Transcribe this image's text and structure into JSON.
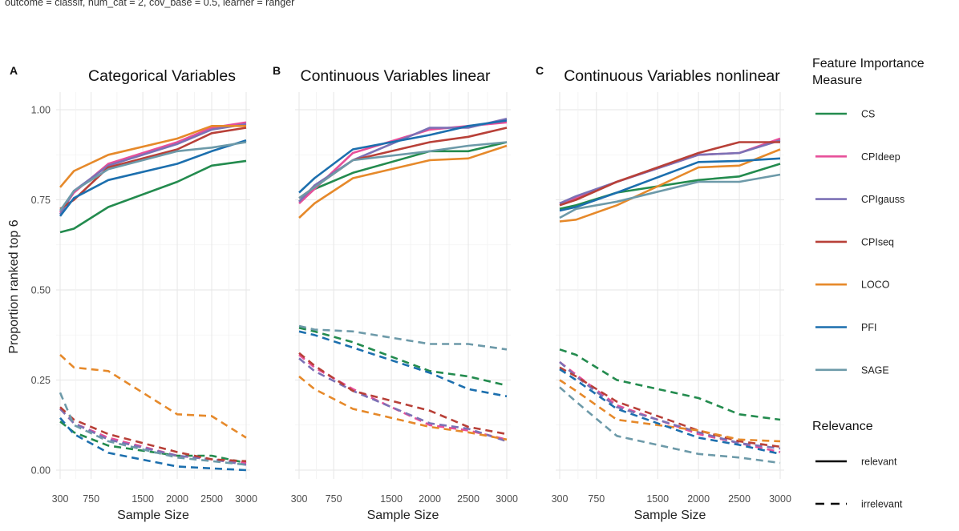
{
  "caption": "outcome = classif, num_cat = 2, cov_base = 0.5, learner = ranger",
  "legend": {
    "title_line1": "Feature Importance",
    "title_line2": "Measure",
    "relevance_title": "Relevance",
    "relevance_entries": [
      "relevant",
      "irrelevant"
    ]
  },
  "colors": {
    "CS": "#238b4e",
    "CPIdeep": "#e7509a",
    "CPIgauss": "#7c71b5",
    "CPIseq": "#b84038",
    "LOCO": "#e6892a",
    "PFI": "#1c6fae",
    "SAGE": "#6d9aa9"
  },
  "chart_data": [
    {
      "type": "line",
      "panel": "A",
      "title": "Categorical Variables",
      "xlabel": "Sample Size",
      "ylabel": "Proportion ranked top 6",
      "x": [
        300,
        500,
        1000,
        2000,
        2500,
        3000
      ],
      "xticks": [
        300,
        750,
        1500,
        2000,
        2500,
        3000
      ],
      "yticks": [
        "0.00",
        "0.25",
        "0.50",
        "0.75",
        "1.00"
      ],
      "xlim": [
        300,
        3000
      ],
      "ylim": [
        0,
        1
      ],
      "series": [
        {
          "name": "CS",
          "relevance": "relevant",
          "values": [
            0.66,
            0.67,
            0.73,
            0.8,
            0.845,
            0.858
          ]
        },
        {
          "name": "CPIdeep",
          "relevance": "relevant",
          "values": [
            0.715,
            0.77,
            0.85,
            0.91,
            0.95,
            0.965
          ]
        },
        {
          "name": "CPIgauss",
          "relevance": "relevant",
          "values": [
            0.71,
            0.775,
            0.845,
            0.905,
            0.945,
            0.96
          ]
        },
        {
          "name": "CPIseq",
          "relevance": "relevant",
          "values": [
            0.725,
            0.75,
            0.84,
            0.89,
            0.935,
            0.95
          ]
        },
        {
          "name": "LOCO",
          "relevance": "relevant",
          "values": [
            0.785,
            0.83,
            0.875,
            0.92,
            0.955,
            0.955
          ]
        },
        {
          "name": "PFI",
          "relevance": "relevant",
          "values": [
            0.705,
            0.755,
            0.805,
            0.85,
            0.885,
            0.915
          ]
        },
        {
          "name": "SAGE",
          "relevance": "relevant",
          "values": [
            0.72,
            0.775,
            0.835,
            0.885,
            0.895,
            0.91
          ]
        },
        {
          "name": "CS",
          "relevance": "irrelevant",
          "values": [
            0.135,
            0.105,
            0.068,
            0.04,
            0.04,
            0.02
          ]
        },
        {
          "name": "CPIdeep",
          "relevance": "irrelevant",
          "values": [
            0.17,
            0.13,
            0.09,
            0.04,
            0.03,
            0.02
          ]
        },
        {
          "name": "CPIgauss",
          "relevance": "irrelevant",
          "values": [
            0.17,
            0.13,
            0.085,
            0.04,
            0.03,
            0.015
          ]
        },
        {
          "name": "CPIseq",
          "relevance": "irrelevant",
          "values": [
            0.175,
            0.14,
            0.1,
            0.05,
            0.03,
            0.025
          ]
        },
        {
          "name": "LOCO",
          "relevance": "irrelevant",
          "values": [
            0.32,
            0.285,
            0.275,
            0.155,
            0.15,
            0.09
          ]
        },
        {
          "name": "PFI",
          "relevance": "irrelevant",
          "values": [
            0.145,
            0.1,
            0.048,
            0.01,
            0.005,
            0.0
          ]
        },
        {
          "name": "SAGE",
          "relevance": "irrelevant",
          "values": [
            0.215,
            0.125,
            0.08,
            0.035,
            0.025,
            0.015
          ]
        }
      ]
    },
    {
      "type": "line",
      "panel": "B",
      "title": "Continuous Variables linear",
      "xlabel": "Sample Size",
      "x": [
        300,
        500,
        1000,
        2000,
        2500,
        3000
      ],
      "xticks": [
        300,
        750,
        1500,
        2000,
        2500,
        3000
      ],
      "xlim": [
        300,
        3000
      ],
      "ylim": [
        0,
        1
      ],
      "series": [
        {
          "name": "CS",
          "relevance": "relevant",
          "values": [
            0.745,
            0.78,
            0.825,
            0.885,
            0.885,
            0.91
          ]
        },
        {
          "name": "CPIdeep",
          "relevance": "relevant",
          "values": [
            0.74,
            0.78,
            0.88,
            0.945,
            0.955,
            0.965
          ]
        },
        {
          "name": "CPIgauss",
          "relevance": "relevant",
          "values": [
            0.745,
            0.79,
            0.86,
            0.95,
            0.95,
            0.975
          ]
        },
        {
          "name": "CPIseq",
          "relevance": "relevant",
          "values": [
            0.755,
            0.785,
            0.86,
            0.91,
            0.925,
            0.95
          ]
        },
        {
          "name": "LOCO",
          "relevance": "relevant",
          "values": [
            0.7,
            0.74,
            0.81,
            0.86,
            0.865,
            0.9
          ]
        },
        {
          "name": "PFI",
          "relevance": "relevant",
          "values": [
            0.77,
            0.81,
            0.89,
            0.93,
            0.955,
            0.97
          ]
        },
        {
          "name": "SAGE",
          "relevance": "relevant",
          "values": [
            0.755,
            0.785,
            0.86,
            0.885,
            0.9,
            0.91
          ]
        },
        {
          "name": "CS",
          "relevance": "irrelevant",
          "values": [
            0.395,
            0.385,
            0.355,
            0.275,
            0.26,
            0.235
          ]
        },
        {
          "name": "CPIdeep",
          "relevance": "irrelevant",
          "values": [
            0.32,
            0.285,
            0.225,
            0.125,
            0.11,
            0.085
          ]
        },
        {
          "name": "CPIgauss",
          "relevance": "irrelevant",
          "values": [
            0.31,
            0.275,
            0.22,
            0.13,
            0.115,
            0.08
          ]
        },
        {
          "name": "CPIseq",
          "relevance": "irrelevant",
          "values": [
            0.325,
            0.29,
            0.22,
            0.165,
            0.12,
            0.1
          ]
        },
        {
          "name": "LOCO",
          "relevance": "irrelevant",
          "values": [
            0.26,
            0.225,
            0.17,
            0.12,
            0.105,
            0.085
          ]
        },
        {
          "name": "PFI",
          "relevance": "irrelevant",
          "values": [
            0.385,
            0.375,
            0.34,
            0.27,
            0.225,
            0.205
          ]
        },
        {
          "name": "SAGE",
          "relevance": "irrelevant",
          "values": [
            0.4,
            0.39,
            0.385,
            0.35,
            0.35,
            0.335
          ]
        }
      ]
    },
    {
      "type": "line",
      "panel": "C",
      "title": "Continuous Variables nonlinear",
      "xlabel": "Sample Size",
      "x": [
        300,
        500,
        1000,
        2000,
        2500,
        3000
      ],
      "xticks": [
        300,
        750,
        1500,
        2000,
        2500,
        3000
      ],
      "xlim": [
        300,
        3000
      ],
      "ylim": [
        0,
        1
      ],
      "series": [
        {
          "name": "CS",
          "relevance": "relevant",
          "values": [
            0.725,
            0.735,
            0.77,
            0.805,
            0.815,
            0.85
          ]
        },
        {
          "name": "CPIdeep",
          "relevance": "relevant",
          "values": [
            0.74,
            0.755,
            0.8,
            0.875,
            0.88,
            0.92
          ]
        },
        {
          "name": "CPIgauss",
          "relevance": "relevant",
          "values": [
            0.74,
            0.76,
            0.8,
            0.875,
            0.88,
            0.915
          ]
        },
        {
          "name": "CPIseq",
          "relevance": "relevant",
          "values": [
            0.735,
            0.75,
            0.8,
            0.88,
            0.91,
            0.91
          ]
        },
        {
          "name": "LOCO",
          "relevance": "relevant",
          "values": [
            0.69,
            0.695,
            0.735,
            0.84,
            0.845,
            0.89
          ]
        },
        {
          "name": "PFI",
          "relevance": "relevant",
          "values": [
            0.72,
            0.73,
            0.77,
            0.855,
            0.858,
            0.865
          ]
        },
        {
          "name": "SAGE",
          "relevance": "relevant",
          "values": [
            0.7,
            0.725,
            0.745,
            0.8,
            0.8,
            0.82
          ]
        },
        {
          "name": "CS",
          "relevance": "irrelevant",
          "values": [
            0.335,
            0.32,
            0.25,
            0.2,
            0.155,
            0.14
          ]
        },
        {
          "name": "CPIdeep",
          "relevance": "irrelevant",
          "values": [
            0.3,
            0.265,
            0.18,
            0.1,
            0.075,
            0.05
          ]
        },
        {
          "name": "CPIgauss",
          "relevance": "irrelevant",
          "values": [
            0.3,
            0.26,
            0.175,
            0.105,
            0.075,
            0.06
          ]
        },
        {
          "name": "CPIseq",
          "relevance": "irrelevant",
          "values": [
            0.285,
            0.26,
            0.19,
            0.11,
            0.08,
            0.065
          ]
        },
        {
          "name": "LOCO",
          "relevance": "irrelevant",
          "values": [
            0.25,
            0.22,
            0.14,
            0.11,
            0.085,
            0.08
          ]
        },
        {
          "name": "PFI",
          "relevance": "irrelevant",
          "values": [
            0.28,
            0.25,
            0.17,
            0.09,
            0.07,
            0.045
          ]
        },
        {
          "name": "SAGE",
          "relevance": "irrelevant",
          "values": [
            0.23,
            0.19,
            0.095,
            0.045,
            0.035,
            0.02
          ]
        }
      ]
    }
  ]
}
